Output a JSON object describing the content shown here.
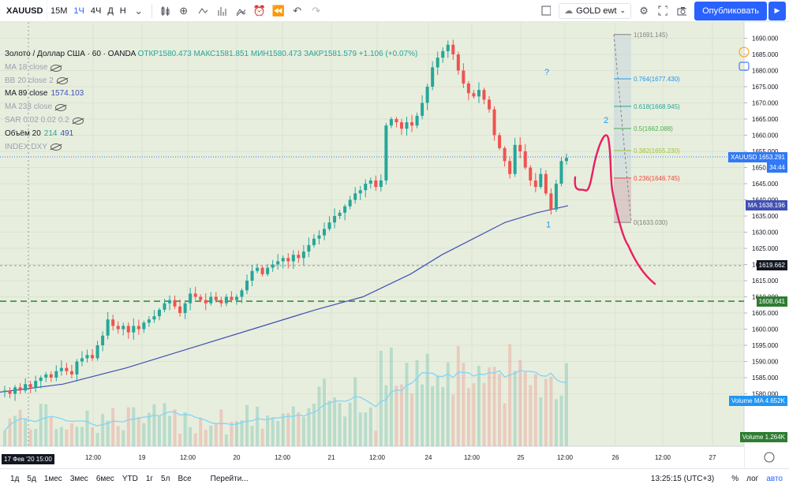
{
  "toolbar": {
    "symbol": "XAUUSD",
    "intervals": [
      "15М",
      "1Ч",
      "4Ч",
      "Д",
      "Н"
    ],
    "active_interval": "1Ч",
    "layout_name": "GOLD ewt",
    "publish_label": "Опубликовать"
  },
  "legend": {
    "title": "Золото / Доллар США · 60 · OANDA",
    "ohlc": "ОТКР1580.473  МАКС1581.851  МИН1580.473  ЗАКР1581.579  +1.106 (+0.07%)",
    "indicators": [
      {
        "label": "MA 18 close",
        "value": ""
      },
      {
        "label": "BB 20 close 2",
        "value": ""
      },
      {
        "label": "MA 89 close",
        "value": "1574.103"
      },
      {
        "label": "MA 233 close",
        "value": ""
      },
      {
        "label": "SAR 0.02 0.02 0.2",
        "value": ""
      },
      {
        "label": "Объём 20",
        "value": "214",
        "value2": "491"
      },
      {
        "label": "INDEX:DXY",
        "value": ""
      }
    ]
  },
  "price_axis": {
    "ticks": [
      "1690.000",
      "1685.000",
      "1680.000",
      "1675.000",
      "1670.000",
      "1665.000",
      "1660.000",
      "1655.000",
      "1650.000",
      "1645.000",
      "1640.000",
      "1635.000",
      "1630.000",
      "1625.000",
      "1620.000",
      "1615.000",
      "1610.000",
      "1605.000",
      "1600.000",
      "1595.000",
      "1590.000",
      "1585.000",
      "1580.000"
    ],
    "labels": {
      "xauusd": {
        "name": "XAUUSD",
        "value": "1653.291",
        "countdown": "34:44"
      },
      "ma": {
        "name": "MA",
        "value": "1638.196"
      },
      "crosshair": "1619.662",
      "hline": "1608.641",
      "volume_ma": {
        "name": "Volume MA",
        "value": "4.652K"
      },
      "volume": {
        "name": "Volume",
        "value": "1.264K"
      }
    }
  },
  "time_axis": {
    "first_label": "17 Фев '20   15:00",
    "labels": [
      "12:00",
      "19",
      "12:00",
      "20",
      "12:00",
      "21",
      "12:00",
      "24",
      "12:00",
      "25",
      "12:00",
      "26",
      "12:00",
      "27"
    ]
  },
  "fib": [
    {
      "label": "1(1691.145)",
      "price": 1691.145
    },
    {
      "label": "0.764(1677.430)",
      "price": 1677.43
    },
    {
      "label": "0.618(1668.945)",
      "price": 1668.945
    },
    {
      "label": "0.5(1662.088)",
      "price": 1662.088
    },
    {
      "label": "0.382(1655.230)",
      "price": 1655.23
    },
    {
      "label": "0.236(1646.745)",
      "price": 1646.745
    },
    {
      "label": "0(1633.030)",
      "price": 1633.03
    }
  ],
  "wave_labels": {
    "w1": "1",
    "w2": "2",
    "q": "?"
  },
  "chart_data": {
    "type": "candlestick",
    "symbol": "XAUUSD",
    "ylim": [
      1577,
      1693
    ],
    "closes": [
      1581,
      1580,
      1582,
      1581,
      1583,
      1582,
      1584,
      1585,
      1586,
      1585,
      1587,
      1588,
      1587,
      1586,
      1590,
      1591,
      1592,
      1591,
      1595,
      1598,
      1603,
      1601,
      1600,
      1601,
      1599,
      1601,
      1600,
      1602,
      1603,
      1604,
      1606,
      1608,
      1609,
      1607,
      1605,
      1608,
      1611,
      1610,
      1609,
      1608,
      1610,
      1609,
      1608,
      1610,
      1609,
      1610,
      1612,
      1615,
      1618,
      1619,
      1617,
      1619,
      1620,
      1621,
      1622,
      1621,
      1623,
      1622,
      1624,
      1626,
      1628,
      1629,
      1631,
      1633,
      1635,
      1636,
      1638,
      1640,
      1642,
      1643,
      1645,
      1646,
      1644,
      1646,
      1663,
      1665,
      1664,
      1662,
      1664,
      1663,
      1666,
      1670,
      1675,
      1681,
      1684,
      1686,
      1688,
      1685,
      1680,
      1676,
      1673,
      1672,
      1674,
      1671,
      1668,
      1660,
      1656,
      1652,
      1648,
      1657,
      1655,
      1650,
      1646,
      1644,
      1648,
      1642,
      1637,
      1645,
      1652,
      1653
    ],
    "ma89": "trend line rising from ~1582 to ~1638",
    "volume": "bar histogram under price",
    "horizontal_lines": [
      1608.641,
      1619.662
    ]
  },
  "bottombar": {
    "ranges": [
      "1д",
      "5д",
      "1мес",
      "3мес",
      "6мес",
      "YTD",
      "1г",
      "5л",
      "Все"
    ],
    "goto": "Перейти...",
    "clock": "13:25:15 (UTC+3)",
    "pct": "%",
    "log": "лог",
    "auto": "авто"
  },
  "colors": {
    "up": "#26a69a",
    "down": "#ef5350",
    "ma": "#3f51b5",
    "drawing": "#e91e63",
    "bg": "#e8eedd"
  }
}
